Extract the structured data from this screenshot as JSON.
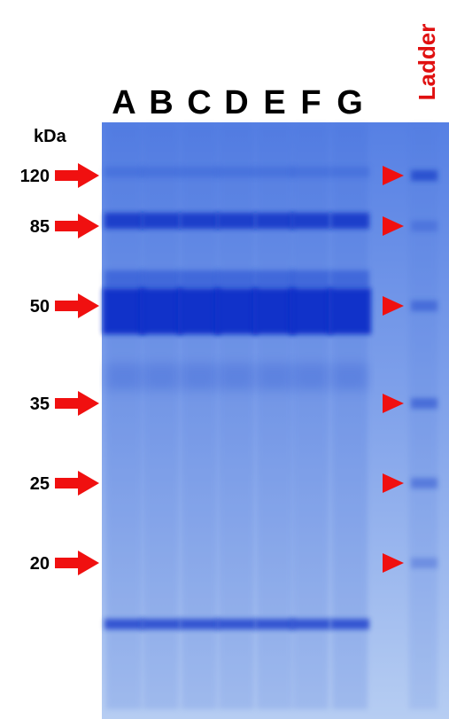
{
  "header": {
    "unit": "kDa"
  },
  "lanes": [
    "A",
    "B",
    "C",
    "D",
    "E",
    "F",
    "G"
  ],
  "ladder_label": "Ladder",
  "markers": [
    "120",
    "85",
    "50",
    "35",
    "25",
    "20"
  ]
}
